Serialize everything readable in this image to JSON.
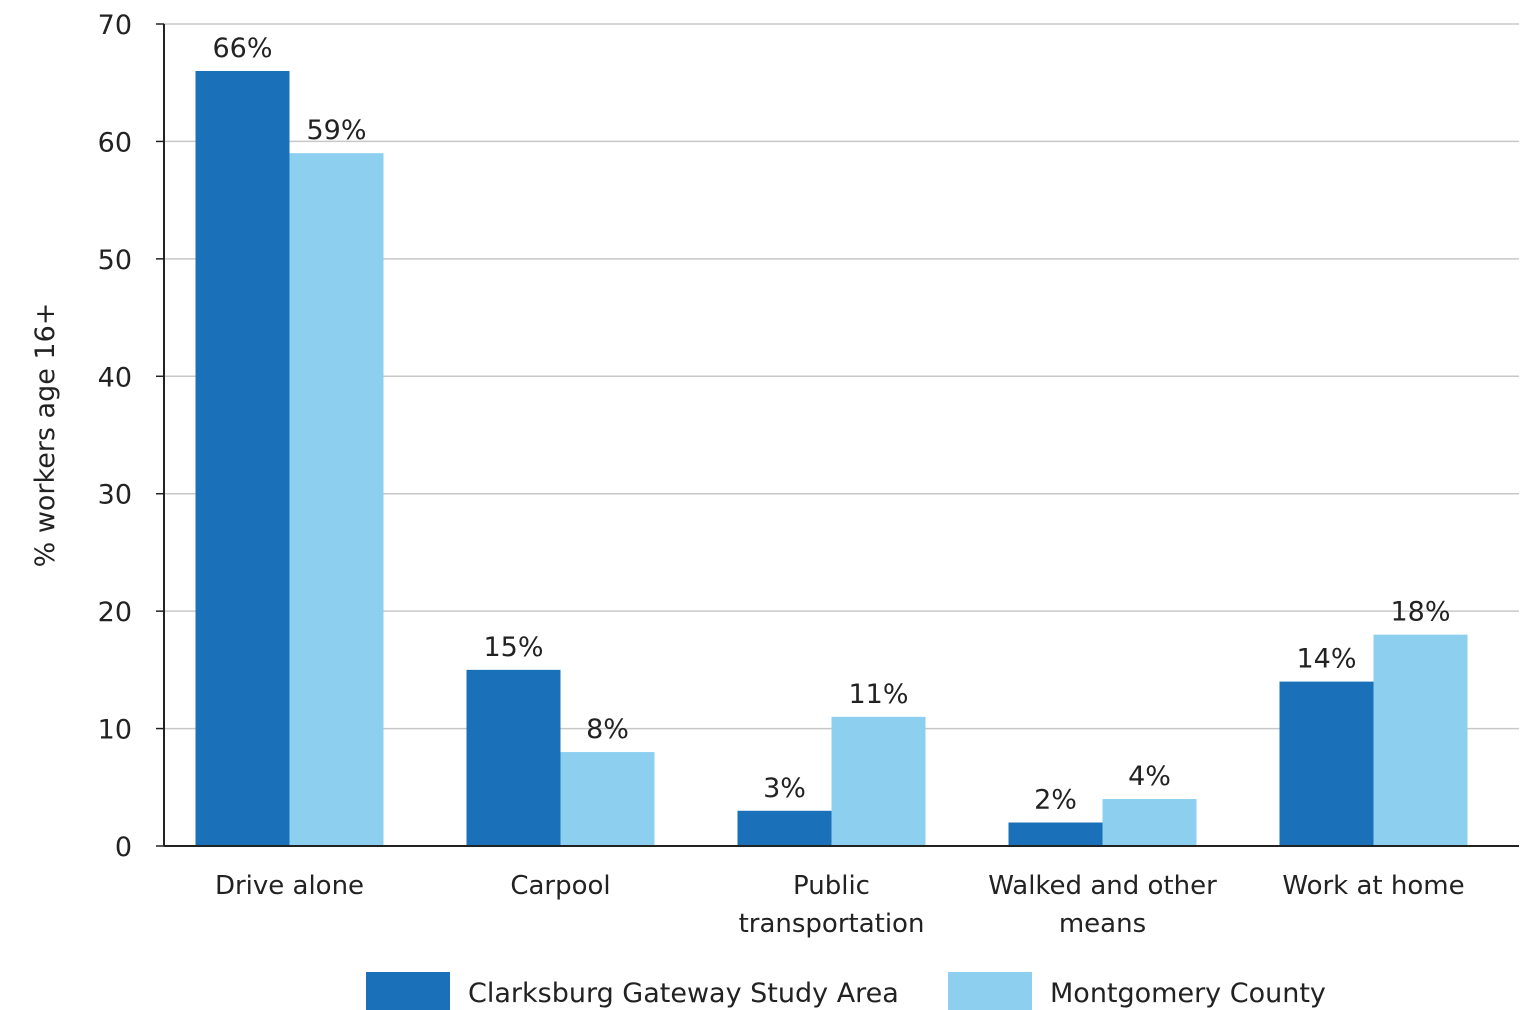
{
  "chart_data": {
    "type": "bar",
    "title": "",
    "xlabel": "",
    "ylabel": "% workers age 16+",
    "ylim": [
      0,
      70
    ],
    "yticks": [
      "0",
      "10",
      "20",
      "30",
      "40",
      "50",
      "60",
      "70"
    ],
    "grid": true,
    "legend_position": "bottom",
    "categories": [
      [
        "Drive alone"
      ],
      [
        "Carpool"
      ],
      [
        "Public",
        "transportation"
      ],
      [
        "Walked and other",
        "means"
      ],
      [
        "Work at home"
      ]
    ],
    "series": [
      {
        "name": "Clarksburg Gateway Study Area",
        "color": "#1a70b9",
        "values": [
          66,
          15,
          3,
          2,
          14
        ],
        "labels": [
          "66%",
          "15%",
          "3%",
          "2%",
          "14%"
        ]
      },
      {
        "name": "Montgomery County",
        "color": "#8dcfef",
        "values": [
          59,
          8,
          11,
          4,
          18
        ],
        "labels": [
          "59%",
          "8%",
          "11%",
          "4%",
          "18%"
        ]
      }
    ]
  }
}
